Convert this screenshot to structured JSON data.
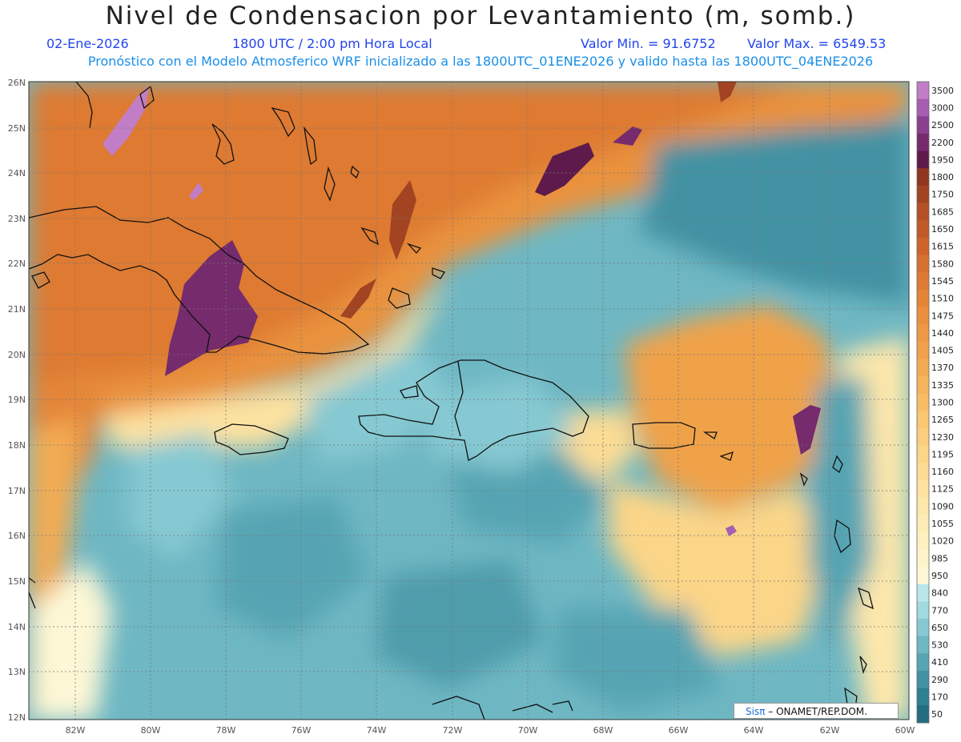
{
  "header": {
    "title": "Nivel de Condensacion por Levantamiento (m, somb.)",
    "date": "02-Ene-2026",
    "time": "1800 UTC / 2:00 pm Hora Local",
    "min": "Valor Min. = 91.6752",
    "max": "Valor Max. = 6549.53",
    "info": "Pronóstico con el Modelo Atmosferico WRF inicializado a las 1800UTC_01ENE2026 y valido hasta las  1800UTC_04ENE2026"
  },
  "map": {
    "lat_labels": [
      "26N",
      "25N",
      "24N",
      "23N",
      "22N",
      "21N",
      "20N",
      "19N",
      "18N",
      "17N",
      "16N",
      "15N",
      "14N",
      "13N",
      "12N"
    ],
    "lon_labels": [
      "82W",
      "80W",
      "78W",
      "76W",
      "74W",
      "72W",
      "70W",
      "68W",
      "66W",
      "64W",
      "62W",
      "60W"
    ],
    "extent": {
      "lon_min": -83.2,
      "lon_max": -60,
      "lat_min": 12,
      "lat_max": 26
    }
  },
  "colorbar": {
    "labels": [
      "3500",
      "3000",
      "2500",
      "2200",
      "1950",
      "1800",
      "1750",
      "1685",
      "1650",
      "1615",
      "1580",
      "1545",
      "1510",
      "1475",
      "1440",
      "1405",
      "1370",
      "1335",
      "1300",
      "1265",
      "1230",
      "1195",
      "1160",
      "1125",
      "1090",
      "1055",
      "1020",
      "985",
      "950",
      "840",
      "770",
      "650",
      "530",
      "410",
      "290",
      "170",
      "50"
    ],
    "colors": [
      "#c17ec7",
      "#a65fb0",
      "#8a3f8f",
      "#752b6c",
      "#5f1a4c",
      "#8f3520",
      "#a24422",
      "#b35026",
      "#c05a28",
      "#cc642b",
      "#d66f2f",
      "#de7a33",
      "#e48437",
      "#e98f3d",
      "#ed9943",
      "#f0a24a",
      "#f3ab52",
      "#f5b45c",
      "#f7bd66",
      "#f9c671",
      "#face7c",
      "#fbd588",
      "#fcdc94",
      "#fde2a0",
      "#fde7ab",
      "#feecb6",
      "#fef0c0",
      "#fef4cb",
      "#fdf7d6",
      "#b9e6ea",
      "#a0d9df",
      "#86c9d2",
      "#6eb7c3",
      "#57a4b3",
      "#4292a3",
      "#2f7f92",
      "#226d80"
    ]
  },
  "credit": {
    "sis": "Sisπ",
    "rest": "– ONAMET/REP.DOM."
  }
}
